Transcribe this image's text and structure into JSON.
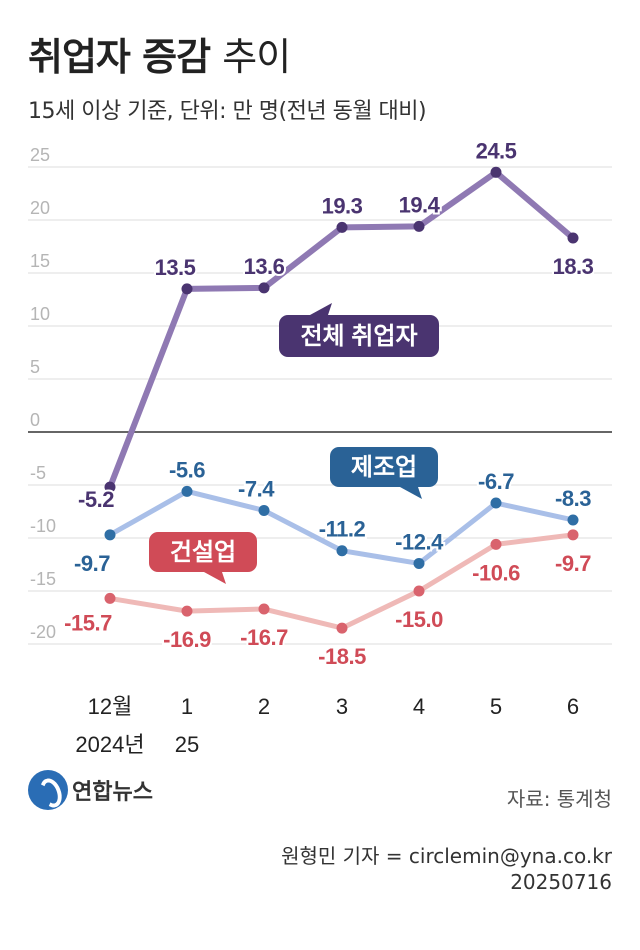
{
  "header": {
    "title_bold": "취업자 증감",
    "title_light": "추이",
    "subtitle": "15세 이상 기준, 단위: 만 명(전년 동월 대비)"
  },
  "footer": {
    "logo_text": "연합뉴스",
    "source": "자료: 통계청",
    "reporter": "원형민 기자 = circlemin@yna.co.kr",
    "date": "20250716"
  },
  "colors": {
    "total": "#8f79b3",
    "total_label": "#4a3470",
    "manufacturing": "#a9bfe8",
    "manufacturing_marker": "#2f6ea5",
    "manufacturing_label": "#2a6296",
    "construction": "#efb9b7",
    "construction_marker": "#d9636d",
    "construction_label": "#d04b57",
    "grid": "#dcdcdc",
    "zero_line": "#333333",
    "tick_label": "#b5b5b5"
  },
  "chart_data": {
    "type": "line",
    "x_top": [
      "12월",
      "1",
      "2",
      "3",
      "4",
      "5",
      "6"
    ],
    "x_bottom": [
      "2024년",
      "25",
      "",
      "",
      "",
      "",
      ""
    ],
    "series": [
      {
        "name": "전체 취업자",
        "key": "total",
        "values": [
          -5.2,
          13.5,
          13.6,
          19.3,
          19.4,
          24.5,
          18.3
        ],
        "labels": [
          "-5.2",
          "13.5",
          "13.6",
          "19.3",
          "19.4",
          "24.5",
          "18.3"
        ]
      },
      {
        "name": "제조업",
        "key": "manufacturing",
        "values": [
          -9.7,
          -5.6,
          -7.4,
          -11.2,
          -12.4,
          -6.7,
          -8.3
        ],
        "labels": [
          "-9.7",
          "-5.6",
          "-7.4",
          "-11.2",
          "-12.4",
          "-6.7",
          "-8.3"
        ]
      },
      {
        "name": "건설업",
        "key": "construction",
        "values": [
          -15.7,
          -16.9,
          -16.7,
          -18.5,
          -15.0,
          -10.6,
          -9.7
        ],
        "labels": [
          "-15.7",
          "-16.9",
          "-16.7",
          "-18.5",
          "-15.0",
          "-10.6",
          "-9.7"
        ]
      }
    ],
    "yticks": [
      "25",
      "20",
      "15",
      "10",
      "5",
      "0",
      "-5",
      "-10",
      "-15",
      "-20"
    ],
    "ylim": [
      -20,
      25
    ],
    "grid": true
  }
}
